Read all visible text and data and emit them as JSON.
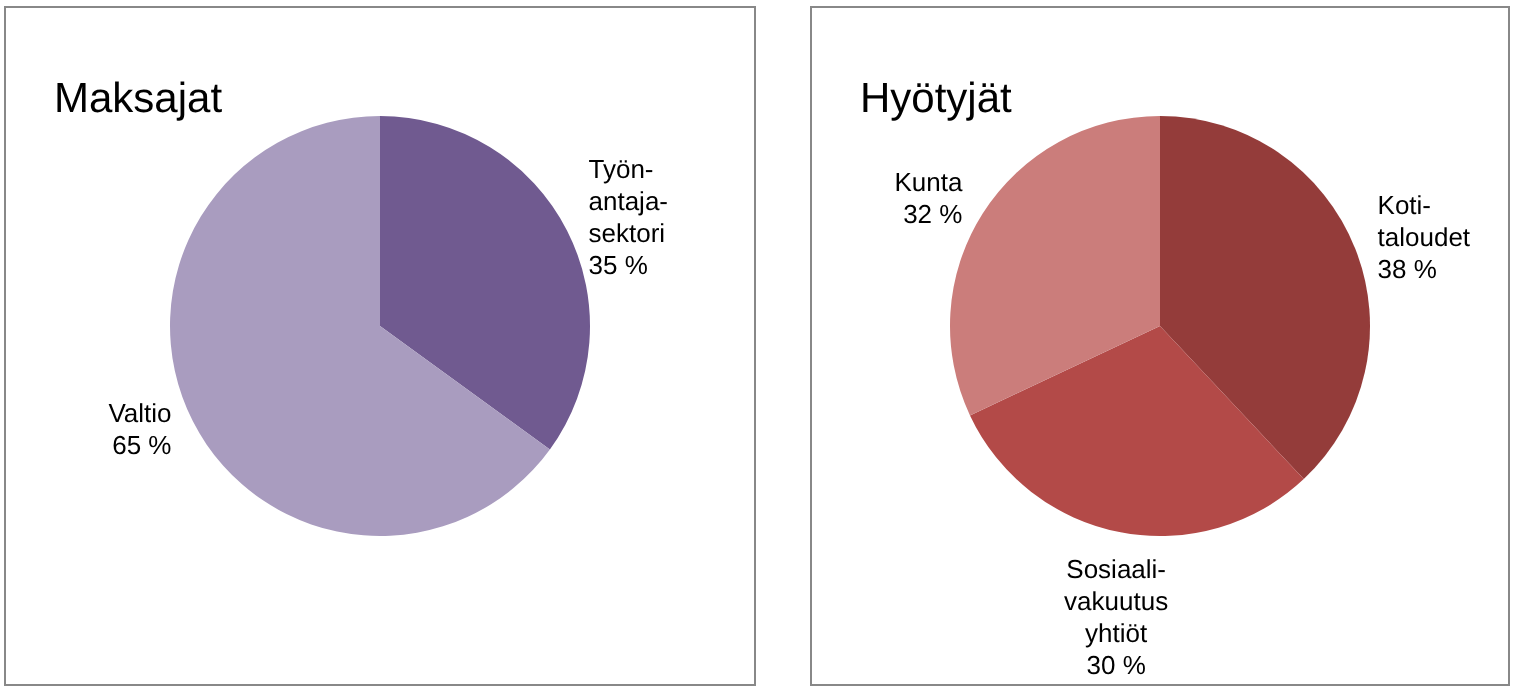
{
  "chart_data": [
    {
      "type": "pie",
      "title": "Maksajat",
      "categories": [
        "Työn-\nantaja-\nsektori",
        "Valtio"
      ],
      "values": [
        35,
        65
      ],
      "colors": [
        "#705a90",
        "#a99cbf"
      ],
      "value_labels": [
        "35 %",
        "65 %"
      ],
      "legend": false
    },
    {
      "type": "pie",
      "title": "Hyötyjät",
      "categories": [
        "Koti-\ntaloudet",
        "Sosiaali-\nvakuutus\nyhtiöt",
        "Kunta"
      ],
      "values": [
        38,
        30,
        32
      ],
      "colors": [
        "#943c3a",
        "#b34a48",
        "#cb7d7b"
      ],
      "value_labels": [
        "38 %",
        "30 %",
        "32 %"
      ],
      "legend": false
    }
  ]
}
